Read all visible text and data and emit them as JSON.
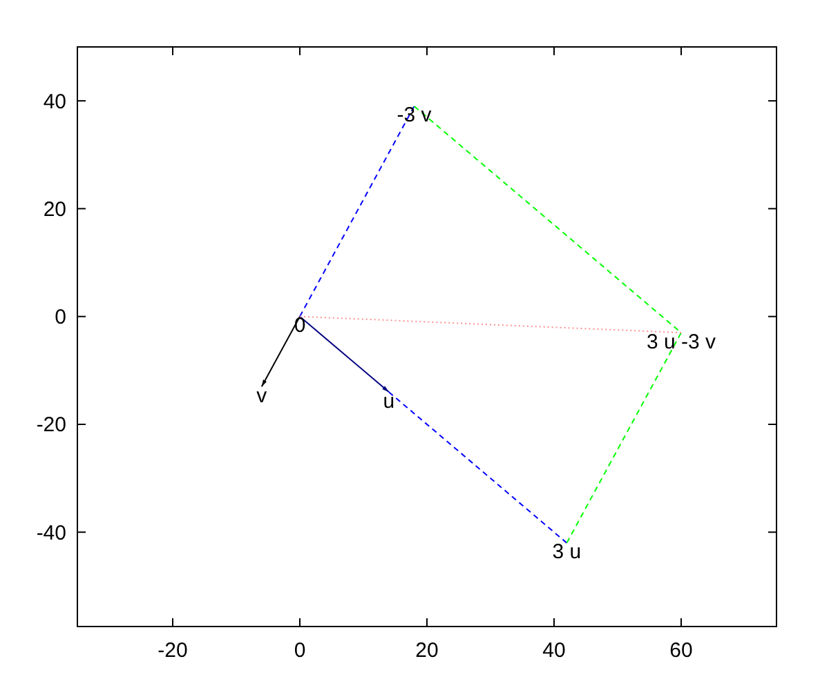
{
  "chart_data": {
    "type": "line",
    "xlim": [
      -35,
      75
    ],
    "ylim": [
      -57.5,
      50
    ],
    "xticks": [
      -20,
      0,
      20,
      40,
      60
    ],
    "yticks": [
      -40,
      -20,
      0,
      20,
      40
    ],
    "grid": false,
    "series": [
      {
        "color": "#000000",
        "x": [
          0,
          -6
        ],
        "values": [
          0,
          -13
        ],
        "line_style": "solid"
      },
      {
        "color": "#000080",
        "x": [
          0,
          14
        ],
        "values": [
          0,
          -14
        ],
        "line_style": "solid"
      },
      {
        "color": "#0000ff",
        "x": [
          0,
          18
        ],
        "values": [
          0,
          39
        ],
        "line_style": "dashed"
      },
      {
        "color": "#0000ff",
        "x": [
          14,
          42
        ],
        "values": [
          -14,
          -42
        ],
        "line_style": "dashed"
      },
      {
        "color": "#00ff00",
        "x": [
          18,
          60,
          42
        ],
        "values": [
          39,
          -3,
          -42
        ],
        "line_style": "dashed"
      },
      {
        "color": "#ff9090",
        "x": [
          0,
          60
        ],
        "values": [
          0,
          -3
        ],
        "line_style": "dotted"
      }
    ],
    "annotations": [
      {
        "text": "0",
        "x": 0,
        "y": 0
      },
      {
        "text": "v",
        "x": -6,
        "y": -13
      },
      {
        "text": "u",
        "x": 14,
        "y": -14
      },
      {
        "text": "3 u",
        "x": 42,
        "y": -42
      },
      {
        "text": "-3 v",
        "x": 18,
        "y": 39
      },
      {
        "text": "3 u -3 v",
        "x": 60,
        "y": -3
      }
    ]
  }
}
